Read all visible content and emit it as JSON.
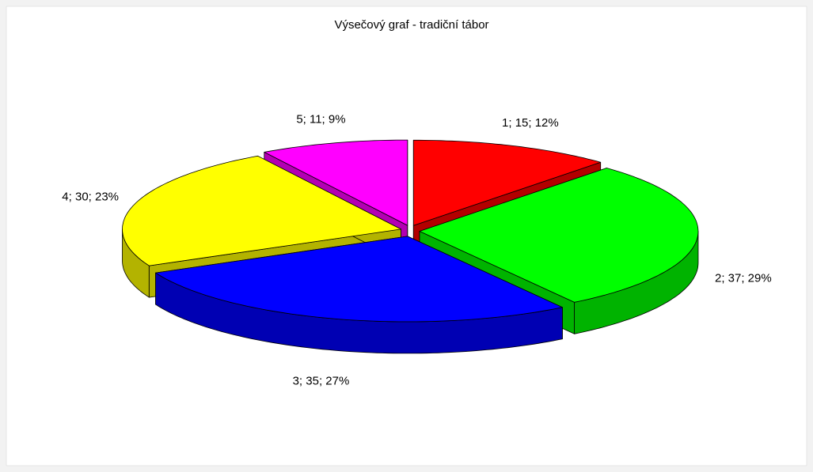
{
  "chart_data": {
    "type": "pie3d",
    "title": "Výsečový graf - tradiční tábor",
    "values": [
      15,
      37,
      35,
      30,
      11
    ],
    "value_labels": [
      "1; 15; 12%",
      "2; 37; 29%",
      "3; 35; 27%",
      "4; 30; 23%",
      "5; 11; 9%"
    ],
    "colors": [
      "#ff0000",
      "#00ff00",
      "#0000ff",
      "#ffff00",
      "#ff00ff"
    ]
  }
}
